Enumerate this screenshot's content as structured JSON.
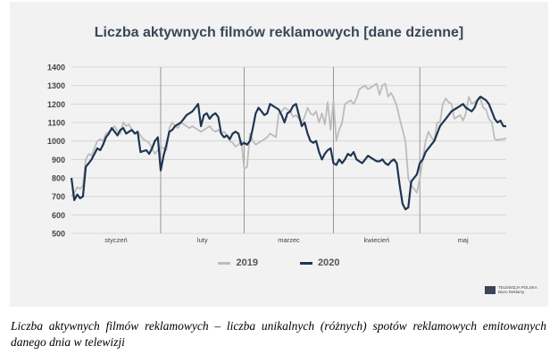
{
  "caption": "Liczba aktywnych filmów reklamowych – liczba unikalnych (różnych) spotów reklamowych emitowanych danego dnia w telewizji",
  "logo": {
    "line1": "TELEWIZJA POLSKA",
    "line2": "Biuro Reklamy"
  },
  "colors": {
    "series_2019": "#bcbcbc",
    "series_2020": "#1f3552",
    "background": "#f2f2f2",
    "grid": "#cfcfcf"
  },
  "chart_data": {
    "type": "line",
    "title": "Liczba aktywnych filmów reklamowych [dane dzienne]",
    "xlabel": "",
    "ylabel": "",
    "ylim": [
      500,
      1400
    ],
    "yticks": [
      500,
      600,
      700,
      800,
      900,
      1000,
      1100,
      1200,
      1300,
      1400
    ],
    "grid": true,
    "legend_position": "bottom",
    "x_unit": "day",
    "months": [
      {
        "label": "styczeń",
        "days": 31
      },
      {
        "label": "luty",
        "days": 29
      },
      {
        "label": "marzec",
        "days": 31
      },
      {
        "label": "kwiecień",
        "days": 30
      },
      {
        "label": "maj",
        "days": 31
      }
    ],
    "series": [
      {
        "name": "2019",
        "values": [
          700,
          720,
          750,
          740,
          760,
          900,
          930,
          920,
          960,
          1000,
          1010,
          1000,
          1040,
          1050,
          1060,
          1080,
          1050,
          1040,
          1100,
          1080,
          1090,
          1060,
          1040,
          1050,
          1030,
          1010,
          1000,
          990,
          960,
          930,
          950,
          970,
          960,
          950,
          1070,
          1100,
          1080,
          1070,
          1100,
          1090,
          1080,
          1070,
          1080,
          1070,
          1060,
          1050,
          1060,
          1070,
          1080,
          1060,
          1050,
          1060,
          1040,
          1050,
          1030,
          1000,
          990,
          970,
          980,
          1000,
          850,
          860,
          1040,
          1000,
          980,
          990,
          1000,
          1010,
          1020,
          1040,
          1030,
          1020,
          1150,
          1160,
          1180,
          1170,
          1160,
          1130,
          1140,
          1120,
          1100,
          1130,
          1180,
          1150,
          1140,
          1160,
          1100,
          1150,
          1090,
          1210,
          1060,
          1220,
          1000,
          1060,
          1100,
          1200,
          1210,
          1220,
          1200,
          1230,
          1280,
          1290,
          1300,
          1280,
          1290,
          1300,
          1310,
          1250,
          1300,
          1310,
          1240,
          1260,
          1230,
          1190,
          1120,
          1060,
          1000,
          800,
          760,
          740,
          720,
          800,
          900,
          1000,
          1050,
          1020,
          1000,
          1100,
          1100,
          1200,
          1230,
          1210,
          1200,
          1120,
          1130,
          1140,
          1110,
          1150,
          1240,
          1200,
          1210,
          1220,
          1230,
          1180,
          1170,
          1120,
          1100,
          1010,
          1005,
          1010,
          1010,
          1015
        ]
      },
      {
        "name": "2020",
        "values": [
          800,
          680,
          710,
          690,
          700,
          860,
          880,
          900,
          930,
          960,
          950,
          980,
          1020,
          1040,
          1070,
          1050,
          1030,
          1060,
          1070,
          1040,
          1050,
          1060,
          1040,
          1050,
          940,
          945,
          950,
          930,
          960,
          1000,
          1020,
          840,
          920,
          980,
          1050,
          1060,
          1080,
          1090,
          1100,
          1120,
          1140,
          1150,
          1160,
          1180,
          1200,
          1080,
          1140,
          1150,
          1120,
          1140,
          1150,
          1130,
          1040,
          1020,
          1030,
          1010,
          1040,
          1050,
          1040,
          980,
          990,
          980,
          1000,
          1070,
          1150,
          1180,
          1160,
          1140,
          1150,
          1200,
          1190,
          1180,
          1170,
          1140,
          1100,
          1150,
          1160,
          1190,
          1200,
          1140,
          1080,
          1100,
          1040,
          1000,
          990,
          1000,
          940,
          900,
          930,
          950,
          960,
          880,
          870,
          900,
          880,
          900,
          930,
          920,
          940,
          900,
          890,
          880,
          900,
          920,
          910,
          900,
          890,
          890,
          900,
          880,
          870,
          890,
          900,
          880,
          760,
          660,
          630,
          640,
          780,
          800,
          820,
          880,
          900,
          940,
          960,
          980,
          1000,
          1040,
          1080,
          1100,
          1120,
          1140,
          1160,
          1170,
          1180,
          1190,
          1200,
          1180,
          1170,
          1160,
          1180,
          1220,
          1240,
          1230,
          1220,
          1200,
          1160,
          1120,
          1100,
          1110,
          1080,
          1080
        ]
      }
    ]
  }
}
